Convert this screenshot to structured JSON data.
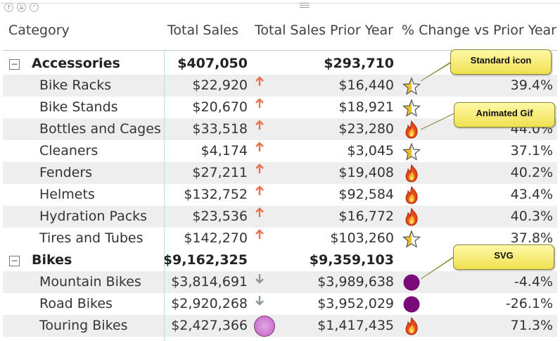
{
  "columns": {
    "category": "Category",
    "total_sales": "Total Sales",
    "total_sales_prior": "Total Sales Prior Year",
    "pct_change": "% Change vs Prior Year"
  },
  "groups": [
    {
      "name": "Accessories",
      "expander": "−",
      "total_sales": "$407,050",
      "total_sales_prior": "$293,710",
      "items": [
        {
          "name": "Bike Racks",
          "total_sales": "$22,920",
          "trend": "up",
          "total_sales_prior": "$16,440",
          "icon": "star-icon",
          "pct": "39.4%"
        },
        {
          "name": "Bike Stands",
          "total_sales": "$20,670",
          "trend": "up",
          "total_sales_prior": "$18,921",
          "icon": "star-icon",
          "pct": ""
        },
        {
          "name": "Bottles and Cages",
          "total_sales": "$33,518",
          "trend": "up",
          "total_sales_prior": "$23,280",
          "icon": "fire-icon",
          "pct": "44.0%"
        },
        {
          "name": "Cleaners",
          "total_sales": "$4,174",
          "trend": "up",
          "total_sales_prior": "$3,045",
          "icon": "star-icon",
          "pct": "37.1%"
        },
        {
          "name": "Fenders",
          "total_sales": "$27,211",
          "trend": "up",
          "total_sales_prior": "$19,408",
          "icon": "fire-icon",
          "pct": "40.2%"
        },
        {
          "name": "Helmets",
          "total_sales": "$132,752",
          "trend": "up",
          "total_sales_prior": "$92,584",
          "icon": "fire-icon",
          "pct": "43.4%"
        },
        {
          "name": "Hydration Packs",
          "total_sales": "$23,536",
          "trend": "up",
          "total_sales_prior": "$16,772",
          "icon": "fire-icon",
          "pct": "40.3%"
        },
        {
          "name": "Tires and Tubes",
          "total_sales": "$142,270",
          "trend": "up",
          "total_sales_prior": "$103,260",
          "icon": "star-icon",
          "pct": "37.8%"
        }
      ]
    },
    {
      "name": "Bikes",
      "expander": "−",
      "total_sales": "$9,162,325",
      "total_sales_prior": "$9,359,103",
      "items": [
        {
          "name": "Mountain Bikes",
          "total_sales": "$3,814,691",
          "trend": "down",
          "total_sales_prior": "$3,989,638",
          "icon": "purple-dot-icon",
          "pct": "-4.4%"
        },
        {
          "name": "Road Bikes",
          "total_sales": "$2,920,268",
          "trend": "down",
          "total_sales_prior": "$3,952,029",
          "icon": "purple-dot-icon",
          "pct": "-26.1%"
        },
        {
          "name": "Touring Bikes",
          "total_sales": "$2,427,366",
          "trend": "circle",
          "total_sales_prior": "$1,417,435",
          "icon": "fire-icon",
          "pct": "71.3%"
        }
      ]
    }
  ],
  "callouts": [
    {
      "text": "Standard icon"
    },
    {
      "text": "Animated Gif"
    },
    {
      "text": "SVG"
    }
  ],
  "colors": {
    "up": "#e8704e",
    "down": "#8a9a8a",
    "purple": "#7a0a7a",
    "header_line": "#b8dde3"
  }
}
